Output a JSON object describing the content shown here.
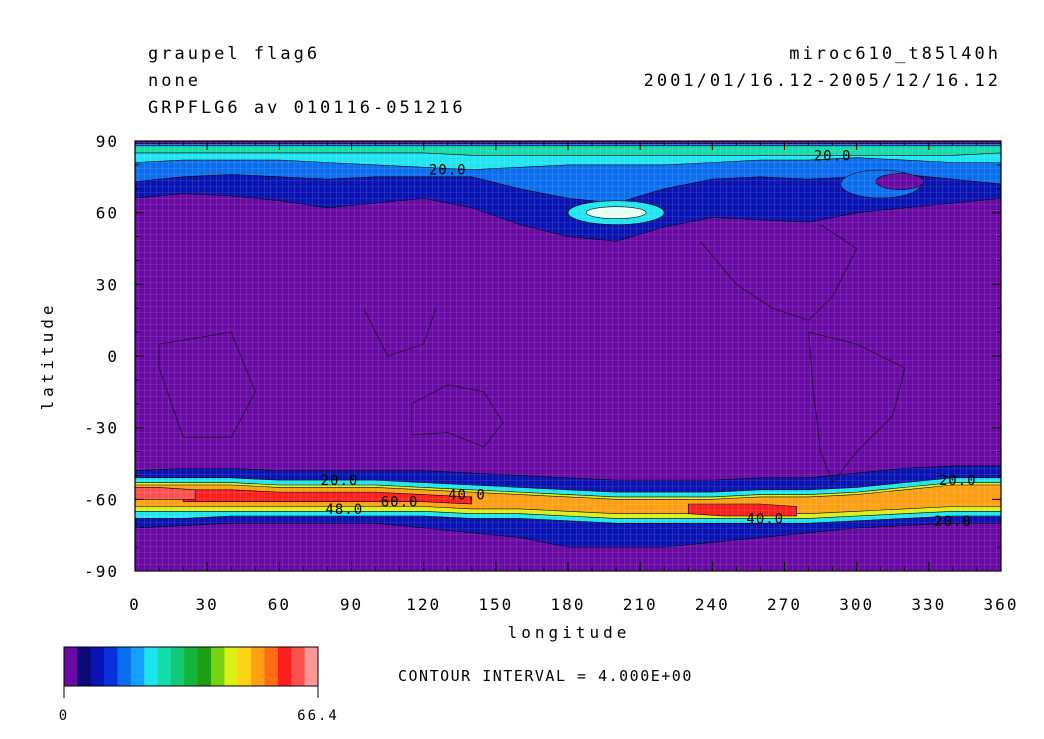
{
  "header": {
    "left_line1": "graupel flag6",
    "left_line2": "none",
    "left_line3": "GRPFLG6 av 010116-051216",
    "right_line1": "miroc610_t85l40h",
    "right_line2": "2001/01/16.12-2005/12/16.12"
  },
  "contour_note": "CONTOUR INTERVAL = 4.000E+00",
  "colorbar": {
    "min_label": "0",
    "max_label": "66.4",
    "colors": [
      "#6a0aa6",
      "#0a0a78",
      "#0a14b4",
      "#0a32dc",
      "#0a6ef0",
      "#14a0ff",
      "#1ee6f0",
      "#14dcaa",
      "#14c878",
      "#14b43c",
      "#1e9e14",
      "#78d214",
      "#dcf014",
      "#ffd214",
      "#ffa014",
      "#ff6e14",
      "#ff1e1e",
      "#ff5050",
      "#ff9696"
    ]
  },
  "chart_data": {
    "type": "heatmap",
    "title": "graupel flag6",
    "xlabel": "longitude",
    "ylabel": "latitude",
    "xlim": [
      0,
      360
    ],
    "ylim": [
      -90,
      90
    ],
    "x_ticks": [
      "0",
      "30",
      "60",
      "90",
      "120",
      "150",
      "180",
      "210",
      "240",
      "270",
      "300",
      "330",
      "360"
    ],
    "y_ticks": [
      "90",
      "60",
      "30",
      "0",
      "-30",
      "-60",
      "-90"
    ],
    "value_range": [
      0,
      66.4
    ],
    "contour_interval": 4.0,
    "contour_labels": [
      {
        "text": "20.0",
        "lon": 130,
        "lat": 78
      },
      {
        "text": "20.0",
        "lon": 290,
        "lat": 84
      },
      {
        "text": "20.0",
        "lon": 85,
        "lat": -52
      },
      {
        "text": "40.0",
        "lon": 138,
        "lat": -58
      },
      {
        "text": "60.0",
        "lon": 110,
        "lat": -61
      },
      {
        "text": "48.0",
        "lon": 87,
        "lat": -64
      },
      {
        "text": "40.0",
        "lon": 262,
        "lat": -68
      },
      {
        "text": "20.0",
        "lon": 342,
        "lat": -52
      },
      {
        "text": "20.0",
        "lon": 340,
        "lat": -69
      }
    ],
    "grid": true,
    "background_value": 0
  }
}
